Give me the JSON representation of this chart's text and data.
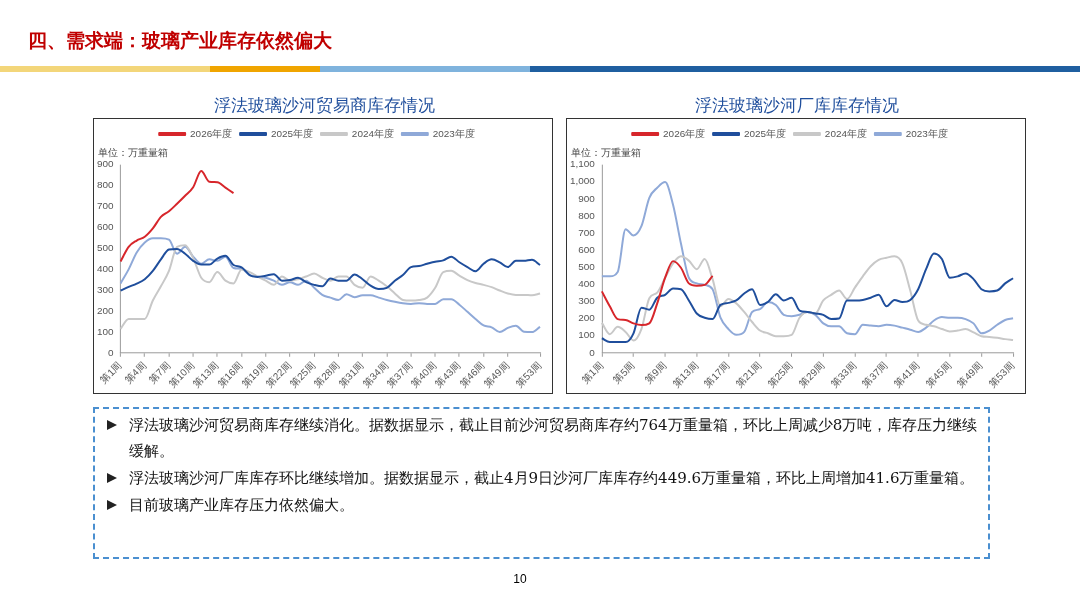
{
  "chart_data": [
    {
      "type": "line",
      "title": "浮法玻璃沙河贸易商库存情况",
      "ylabel": "单位：万重量箱",
      "legend": "top",
      "marker": "none",
      "categories": [
        "第1周",
        null,
        null,
        "第4周",
        null,
        null,
        "第7周",
        null,
        null,
        "第10周",
        null,
        null,
        "第13周",
        null,
        null,
        "第16周",
        null,
        null,
        "第19周",
        null,
        null,
        "第22周",
        null,
        null,
        "第25周",
        null,
        null,
        "第28周",
        null,
        null,
        "第31周",
        null,
        null,
        "第34周",
        null,
        null,
        "第37周",
        null,
        null,
        "第40周",
        null,
        null,
        "第43周",
        null,
        null,
        "第46周",
        null,
        null,
        "第49周",
        null,
        null,
        null,
        "第53周"
      ],
      "ylim": [
        0,
        900
      ],
      "yticks": [
        0,
        100,
        200,
        300,
        400,
        500,
        600,
        700,
        800,
        900
      ],
      "series": [
        {
          "name": "2026年度",
          "color": "#d7262b",
          "values": [
            437,
            507,
            537,
            555,
            595,
            650,
            677,
            713,
            751,
            792,
            870,
            818,
            816,
            790,
            764,
            null,
            null,
            null,
            null,
            null,
            null,
            null,
            null,
            null,
            null,
            null,
            null,
            null,
            null,
            null,
            null,
            null,
            null,
            null,
            null,
            null,
            null,
            null,
            null,
            null,
            null,
            null,
            null,
            null,
            null,
            null,
            null,
            null,
            null,
            null,
            null,
            null,
            null
          ]
        },
        {
          "name": "2025年度",
          "color": "#1f4e9c",
          "values": [
            298,
            315,
            331,
            352,
            392,
            447,
            494,
            497,
            474,
            440,
            422,
            422,
            451,
            464,
            420,
            409,
            372,
            363,
            369,
            376,
            345,
            348,
            359,
            338,
            325,
            318,
            355,
            345,
            345,
            375,
            352,
            321,
            305,
            311,
            345,
            372,
            410,
            415,
            426,
            436,
            442,
            460,
            433,
            410,
            390,
            426,
            447,
            433,
            410,
            440,
            440,
            445,
            420
          ]
        },
        {
          "name": "2024年度",
          "color": "#c8c8c8",
          "values": [
            115,
            162,
            162,
            162,
            250,
            318,
            392,
            507,
            514,
            453,
            359,
            338,
            386,
            345,
            332,
            399,
            386,
            365,
            345,
            325,
            365,
            345,
            352,
            365,
            379,
            359,
            345,
            365,
            365,
            325,
            311,
            365,
            345,
            318,
            284,
            253,
            250,
            253,
            264,
            311,
            386,
            392,
            369,
            348,
            334,
            325,
            314,
            298,
            284,
            277,
            277,
            275,
            284
          ]
        },
        {
          "name": "2023年度",
          "color": "#8fa9d8",
          "values": [
            332,
            399,
            480,
            528,
            548,
            548,
            541,
            474,
            507,
            460,
            426,
            447,
            440,
            460,
            406,
            402,
            372,
            365,
            359,
            345,
            325,
            338,
            325,
            345,
            311,
            277,
            264,
            253,
            280,
            266,
            275,
            275,
            264,
            253,
            244,
            237,
            234,
            237,
            234,
            234,
            256,
            256,
            230,
            196,
            162,
            131,
            122,
            99,
            119,
            129,
            101,
            99,
            124
          ]
        }
      ]
    },
    {
      "type": "line",
      "title": "浮法玻璃沙河厂库库存情况",
      "ylabel": "单位：万重量箱",
      "legend": "top",
      "marker": "none",
      "categories": [
        "第1周",
        null,
        null,
        null,
        "第5周",
        null,
        null,
        null,
        "第9周",
        null,
        null,
        null,
        "第13周",
        null,
        null,
        null,
        "第17周",
        null,
        null,
        null,
        "第21周",
        null,
        null,
        null,
        "第25周",
        null,
        null,
        null,
        "第29周",
        null,
        null,
        null,
        "第33周",
        null,
        null,
        null,
        "第37周",
        null,
        null,
        null,
        "第41周",
        null,
        null,
        null,
        "第45周",
        null,
        null,
        null,
        "第49周",
        null,
        null,
        null,
        "第53周"
      ],
      "ylim": [
        0,
        1100
      ],
      "yticks": [
        0,
        100,
        200,
        300,
        400,
        500,
        600,
        700,
        800,
        900,
        {
          "value": 1000,
          "label": "1,000"
        },
        {
          "value": 1100,
          "label": "1,100"
        }
      ],
      "series": [
        {
          "name": "2026年度",
          "color": "#d7262b",
          "values": [
            359,
            272,
            197,
            192,
            172,
            162,
            172,
            289,
            439,
            536,
            497,
            406,
            392,
            397,
            450,
            null,
            null,
            null,
            null,
            null,
            null,
            null,
            null,
            null,
            null,
            null,
            null,
            null,
            null,
            null,
            null,
            null,
            null,
            null,
            null,
            null,
            null,
            null,
            null,
            null,
            null,
            null,
            null,
            null,
            null,
            null,
            null,
            null,
            null,
            null,
            null,
            null,
            null
          ]
        },
        {
          "name": "2025年度",
          "color": "#1f4e9c",
          "values": [
            85,
            63,
            63,
            63,
            114,
            264,
            252,
            322,
            339,
            376,
            372,
            306,
            230,
            205,
            197,
            280,
            292,
            306,
            347,
            372,
            280,
            297,
            342,
            306,
            322,
            247,
            239,
            230,
            222,
            197,
            200,
            306,
            306,
            309,
            322,
            339,
            272,
            309,
            297,
            309,
            372,
            489,
            581,
            548,
            439,
            447,
            464,
            431,
            372,
            359,
            364,
            406,
            436
          ]
        },
        {
          "name": "2024年度",
          "color": "#c8c8c8",
          "values": [
            175,
            109,
            152,
            122,
            72,
            139,
            319,
            352,
            439,
            523,
            564,
            539,
            489,
            548,
            431,
            272,
            314,
            289,
            239,
            180,
            130,
            114,
            97,
            97,
            105,
            205,
            239,
            230,
            306,
            339,
            364,
            314,
            381,
            447,
            506,
            543,
            556,
            564,
            523,
            364,
            189,
            164,
            155,
            139,
            125,
            130,
            139,
            119,
            97,
            93,
            88,
            80,
            75
          ]
        },
        {
          "name": "2023年度",
          "color": "#8fa9d8",
          "values": [
            447,
            447,
            472,
            723,
            686,
            740,
            906,
            965,
            998,
            865,
            639,
            439,
            406,
            397,
            372,
            205,
            139,
            105,
            122,
            239,
            255,
            297,
            280,
            222,
            214,
            222,
            239,
            222,
            172,
            155,
            155,
            114,
            109,
            164,
            159,
            155,
            164,
            159,
            147,
            135,
            122,
            147,
            189,
            209,
            205,
            205,
            197,
            172,
            114,
            130,
            164,
            192,
            202
          ]
        }
      ]
    },
    {
      "type": "other",
      "title": "四、需求端：玻璃产业库存依然偏大",
      "annotations": [
        "浮法玻璃沙河贸易商库存继续消化。据数据显示，截止目前沙河贸易商库存约764万重量箱，环比上周减少8万吨，库存压力继续缓解。",
        "浮法玻璃沙河厂库库存环比继续增加。据数据显示，截止4月9日沙河厂库库存约449.6万重量箱，环比上周增加41.6万重量箱。",
        "目前玻璃产业库存压力依然偏大。",
        "10"
      ]
    }
  ]
}
